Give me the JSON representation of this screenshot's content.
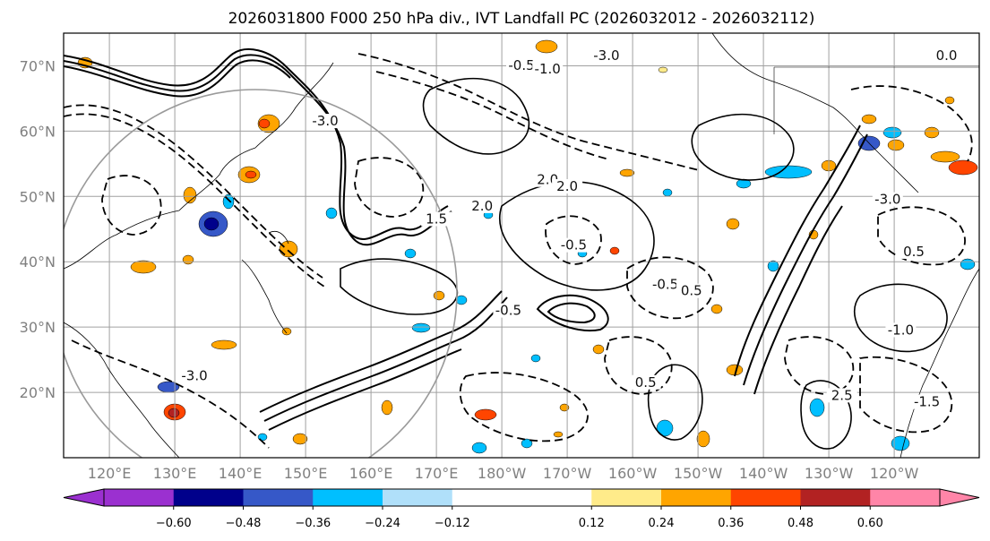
{
  "chart_data": {
    "type": "heatmap",
    "title": "2026031800 F000 250 hPa div., IVT Landfall PC (2026032012 - 2026032112)",
    "x_tick_labels": [
      "120°E",
      "130°E",
      "140°E",
      "150°E",
      "160°E",
      "170°E",
      "180°W",
      "170°W",
      "160°W",
      "150°W",
      "140°W",
      "130°W",
      "120°W"
    ],
    "x_ticks_lon": [
      120,
      130,
      140,
      150,
      160,
      170,
      180,
      190,
      200,
      210,
      220,
      230,
      240
    ],
    "y_tick_labels": [
      "70°N",
      "60°N",
      "50°N",
      "40°N",
      "30°N",
      "20°N"
    ],
    "y_ticks_lat": [
      70,
      60,
      50,
      40,
      30,
      20
    ],
    "xlim_lon": [
      113,
      253
    ],
    "ylim_lat": [
      10,
      75
    ],
    "grid": true,
    "colorbar": {
      "levels": [
        -0.72,
        -0.6,
        -0.48,
        -0.36,
        -0.24,
        -0.12,
        0.12,
        0.24,
        0.36,
        0.48,
        0.6,
        0.72
      ],
      "colors": [
        "#9b30d0",
        "#00008b",
        "#3658c8",
        "#00bfff",
        "#b0e0fa",
        "#ffffff",
        "#ffeb8a",
        "#ffa500",
        "#ff4500",
        "#b22222",
        "#ff85a8"
      ],
      "tick_labels": [
        "−0.60",
        "−0.48",
        "−0.36",
        "−0.24",
        "−0.12",
        "0.12",
        "0.24",
        "0.36",
        "0.48",
        "0.60"
      ],
      "extend": "both"
    },
    "contour_labels": [
      {
        "text": "-3.0",
        "lon": 196,
        "lat": 71
      },
      {
        "text": "-0.5",
        "lon": 183,
        "lat": 69.5
      },
      {
        "text": "-1.0",
        "lon": 187,
        "lat": 69
      },
      {
        "text": "0.0",
        "lon": 248,
        "lat": 71
      },
      {
        "text": "-3.0",
        "lon": 153,
        "lat": 61
      },
      {
        "text": "2.0",
        "lon": 187,
        "lat": 52
      },
      {
        "text": "2.0",
        "lon": 190,
        "lat": 51
      },
      {
        "text": "1.5",
        "lon": 170,
        "lat": 46
      },
      {
        "text": "2.0",
        "lon": 177,
        "lat": 48
      },
      {
        "text": "-0.5",
        "lon": 191,
        "lat": 42
      },
      {
        "text": "-0.5",
        "lon": 205,
        "lat": 36
      },
      {
        "text": "0.5",
        "lon": 209,
        "lat": 35
      },
      {
        "text": "-0.5",
        "lon": 181,
        "lat": 32
      },
      {
        "text": "-3.0",
        "lon": 133,
        "lat": 22
      },
      {
        "text": "0.5",
        "lon": 202,
        "lat": 21
      },
      {
        "text": "-3.0",
        "lon": 239,
        "lat": 49
      },
      {
        "text": "0.5",
        "lon": 243,
        "lat": 41
      },
      {
        "text": "-1.0",
        "lon": 241,
        "lat": 29
      },
      {
        "text": "-1.5",
        "lon": 245,
        "lat": 18
      },
      {
        "text": "2.5",
        "lon": 232,
        "lat": 19
      }
    ]
  }
}
